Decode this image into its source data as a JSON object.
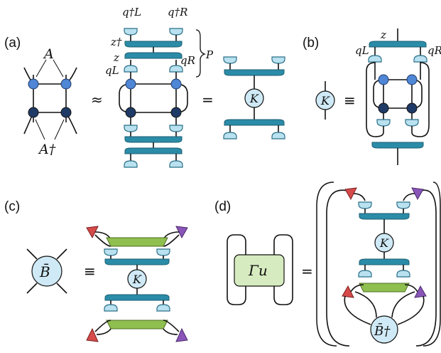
{
  "panels": {
    "a": {
      "label": "(a)",
      "A_label": "A",
      "Adag_label": "A†",
      "approx": "≈",
      "equals": "=",
      "qL_dag": "q†L",
      "qR_dag": "q†R",
      "z_dag": "z†",
      "z": "z",
      "qL": "qL",
      "qR": "qR",
      "P": "P",
      "K": "K"
    },
    "b": {
      "label": "(b)",
      "K": "K",
      "equiv": "≡",
      "z": "z",
      "qL": "qL",
      "qR": "qR"
    },
    "c": {
      "label": "(c)",
      "B_bar": "B̄",
      "equiv": "≡",
      "K": "K"
    },
    "d": {
      "label": "(d)",
      "gamma": "Γu",
      "equals": "=",
      "K": "K",
      "B_bar_dag": "B̄†"
    }
  },
  "colors": {
    "A_site": "#4f86d6",
    "A_dag_site": "#1f3a66",
    "cap": "#b9e1ef",
    "isometry": "#2b8ca8",
    "K_fill": "#cfeaf6",
    "green_tensor": "#8fbf4e",
    "red_triangle": "#d64a4a",
    "purple_triangle": "#8a55b8",
    "gamma_box": "#d6ecc0"
  },
  "icons": [
    "approx-symbol",
    "equals-symbol",
    "equivalent-symbol",
    "brace-symbol"
  ]
}
